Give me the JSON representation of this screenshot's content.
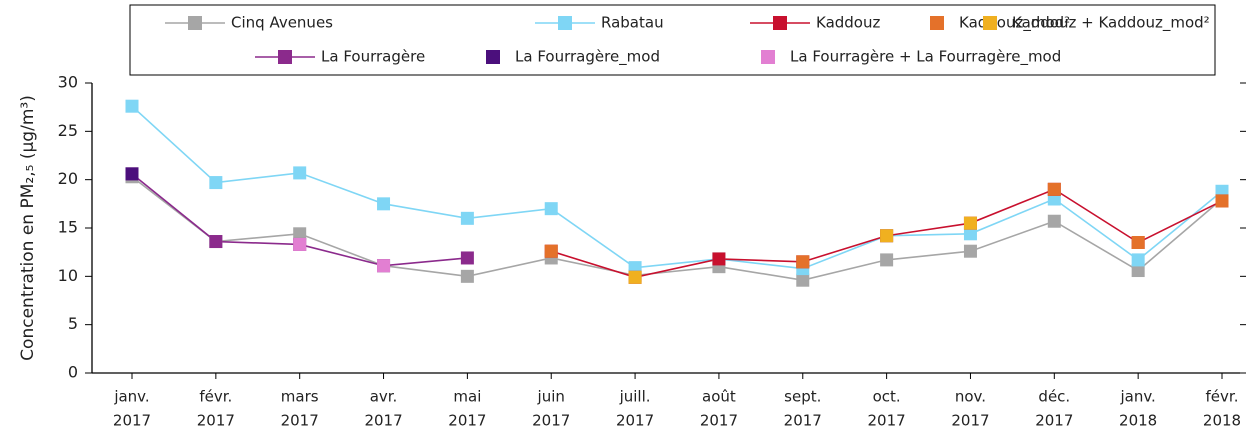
{
  "chart_data": {
    "type": "line",
    "y_label": "Concentration en PM₂,₅ (µg/m³)",
    "categories": [
      [
        "janv.",
        "2017"
      ],
      [
        "févr.",
        "2017"
      ],
      [
        "mars",
        "2017"
      ],
      [
        "avr.",
        "2017"
      ],
      [
        "mai",
        "2017"
      ],
      [
        "juin",
        "2017"
      ],
      [
        "juill.",
        "2017"
      ],
      [
        "août",
        "2017"
      ],
      [
        "sept.",
        "2017"
      ],
      [
        "oct.",
        "2017"
      ],
      [
        "nov.",
        "2017"
      ],
      [
        "déc.",
        "2017"
      ],
      [
        "janv.",
        "2018"
      ],
      [
        "févr.",
        "2018"
      ]
    ],
    "ylim": [
      0,
      30
    ],
    "yticks": [
      0,
      5,
      10,
      15,
      20,
      25,
      30
    ],
    "series": [
      {
        "name": "Cinq Avenues",
        "color": "#a6a6a6",
        "line": true,
        "values": [
          20.3,
          13.6,
          14.4,
          11.1,
          10.0,
          11.9,
          10.1,
          11.0,
          9.6,
          11.7,
          12.6,
          15.7,
          10.6,
          18.0
        ]
      },
      {
        "name": "Rabatau",
        "color": "#7fd6f5",
        "line": true,
        "values": [
          27.6,
          19.7,
          20.7,
          17.5,
          16.0,
          17.0,
          10.9,
          11.8,
          10.8,
          14.2,
          14.4,
          18.0,
          11.7,
          18.8
        ]
      },
      {
        "name": "Kaddouz",
        "color": "#c8102e",
        "line": true,
        "values": [
          null,
          null,
          null,
          null,
          null,
          12.6,
          9.9,
          11.8,
          11.5,
          14.2,
          15.5,
          19.0,
          13.5,
          17.8
        ]
      },
      {
        "name": "Kaddouz_mod²",
        "color": "#e4712a",
        "line": false,
        "values": [
          null,
          null,
          null,
          null,
          null,
          12.6,
          null,
          null,
          11.5,
          null,
          null,
          19.0,
          13.5,
          17.8
        ]
      },
      {
        "name": "Kaddouz + Kaddouz_mod²",
        "color": "#f0b020",
        "line": false,
        "values": [
          null,
          null,
          null,
          null,
          null,
          null,
          9.9,
          null,
          null,
          14.2,
          15.5,
          null,
          null,
          null
        ]
      },
      {
        "name": "La Fourragère",
        "color": "#8b2a8c",
        "line": true,
        "values": [
          20.6,
          13.6,
          13.3,
          11.1,
          11.9,
          null,
          null,
          null,
          null,
          null,
          null,
          null,
          null,
          null
        ]
      },
      {
        "name": "La Fourragère_mod",
        "color": "#4b0f7c",
        "line": false,
        "values": [
          20.6,
          null,
          null,
          null,
          null,
          null,
          null,
          null,
          null,
          null,
          null,
          null,
          null,
          null
        ]
      },
      {
        "name": "La Fourragère + La Fourragère_mod",
        "color": "#e27fd2",
        "line": false,
        "values": [
          null,
          null,
          13.3,
          11.1,
          null,
          null,
          null,
          null,
          null,
          null,
          null,
          null,
          null,
          null
        ]
      }
    ]
  }
}
